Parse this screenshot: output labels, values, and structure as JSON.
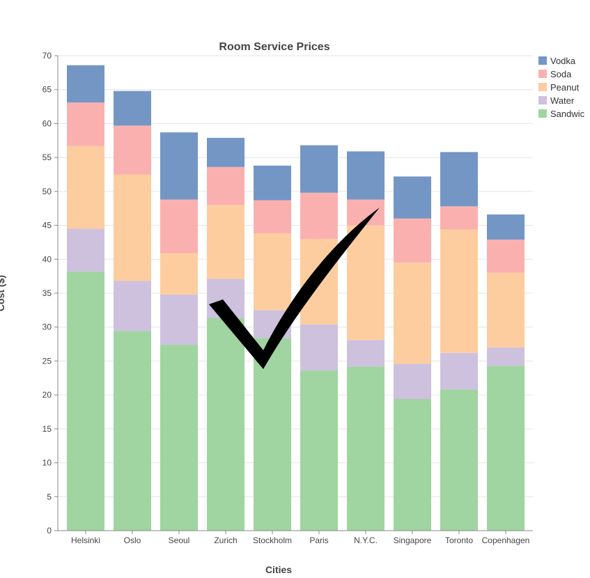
{
  "chart_data": {
    "type": "bar",
    "stacked": true,
    "title": "Room Service Prices",
    "xlabel": "Cities",
    "ylabel": "Cost ($)",
    "ylim": [
      0,
      70
    ],
    "yticks": [
      0,
      5,
      10,
      15,
      20,
      25,
      30,
      35,
      40,
      45,
      50,
      55,
      60,
      65,
      70
    ],
    "grid": true,
    "legend_position": "top-right",
    "categories": [
      "Helsinki",
      "Oslo",
      "Seoul",
      "Zurich",
      "Stockholm",
      "Paris",
      "N.Y.C.",
      "Singapore",
      "Toronto",
      "Copenhagen"
    ],
    "series": [
      {
        "name": "Sandwic",
        "color": "#a0d4a0",
        "values": [
          38.2,
          29.4,
          27.4,
          31.3,
          28.4,
          23.6,
          24.2,
          19.4,
          20.8,
          24.3
        ]
      },
      {
        "name": "Water",
        "color": "#cdc1de",
        "values": [
          6.3,
          7.4,
          7.4,
          5.8,
          4.1,
          6.8,
          3.9,
          5.2,
          5.4,
          2.7
        ]
      },
      {
        "name": "Peanut",
        "color": "#fdcda0",
        "values": [
          12.2,
          15.7,
          6.1,
          10.9,
          11.3,
          12.6,
          16.9,
          14.9,
          18.2,
          11.0
        ]
      },
      {
        "name": "Soda",
        "color": "#fbb0b0",
        "values": [
          6.4,
          7.2,
          7.9,
          5.6,
          4.9,
          6.8,
          3.8,
          6.5,
          3.4,
          4.9
        ]
      },
      {
        "name": "Vodka",
        "color": "#7496c4",
        "values": [
          5.5,
          5.1,
          9.9,
          4.3,
          5.1,
          7.0,
          7.1,
          6.2,
          8.0,
          3.7
        ]
      }
    ],
    "legend_order": [
      "Vodka",
      "Soda",
      "Peanut",
      "Water",
      "Sandwic"
    ]
  }
}
